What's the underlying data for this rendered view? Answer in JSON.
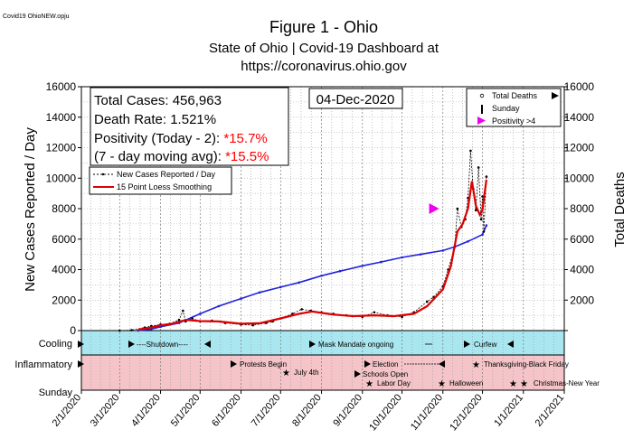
{
  "file_label": "Covid19 OhioNEW.opju",
  "title": "Figure 1 - Ohio",
  "subtitle_line1": "State of Ohio | Covid-19 Dashboard at",
  "subtitle_line2": "https://coronavirus.ohio.gov",
  "stats": {
    "total_cases": "Total Cases: 456,963",
    "death_rate": "Death Rate:  1.521%",
    "positivity_today_label": "Positivity (Today - 2): ",
    "positivity_today_value": "*15.7%",
    "positivity_avg_label": "(7 - day moving avg): ",
    "positivity_avg_value": "*15.5%"
  },
  "date_box": "04-Dec-2020",
  "legend_left": {
    "new_cases": "New Cases Reported / Day",
    "smoothing": "15 Point Loess Smoothing"
  },
  "legend_right": {
    "total_deaths": "Total Deaths",
    "sunday": "Sunday",
    "positivity": "Positivity >4"
  },
  "row_labels": {
    "cooling": "Cooling",
    "inflammatory": "Inflammatory",
    "sunday": "Sunday"
  },
  "events": {
    "shutdown": "----Shutdown----",
    "mask_mandate": "Mask Mandate ongoing",
    "curfew": "Curfew",
    "protests": "Protests Begin",
    "election": "Election",
    "thanksgiving": "Thanksgiving-Black Friday",
    "july4": "July 4th",
    "schools_open": "Schools Open",
    "labor_day": "Labor Day",
    "halloween": "Halloween",
    "christmas": "Christmas-New Year"
  },
  "colors": {
    "new_cases": "#000000",
    "smoothing": "#dd0000",
    "total_deaths": "#2222dd",
    "positivity_marker": "#ee00ee",
    "cooling_band": "#a8e6f0",
    "inflammatory_band": "#f4c4c8",
    "highlight_text": "#ff0000"
  },
  "chart_data": {
    "type": "line",
    "title": "Figure 1 - Ohio",
    "xlabel": "",
    "ylabel": "New Cases Reported / Day",
    "y2label": "Total Deaths",
    "x_ticks": [
      "2/1/2020",
      "3/1/2020",
      "4/1/2020",
      "5/1/2020",
      "6/1/2020",
      "7/1/2020",
      "8/1/2020",
      "9/1/2020",
      "10/1/2020",
      "11/1/2020",
      "12/1/2020",
      "1/1/2021",
      "2/1/2021"
    ],
    "ylim": [
      0,
      16000
    ],
    "y2lim": [
      0,
      16000
    ],
    "y_ticks": [
      0,
      2000,
      4000,
      6000,
      8000,
      10000,
      12000,
      14000,
      16000
    ],
    "grid": true,
    "series": [
      {
        "name": "New Cases Reported / Day",
        "x": [
          "2020-03-01",
          "2020-03-10",
          "2020-03-20",
          "2020-03-25",
          "2020-04-01",
          "2020-04-08",
          "2020-04-15",
          "2020-04-18",
          "2020-04-20",
          "2020-04-25",
          "2020-05-01",
          "2020-05-10",
          "2020-05-20",
          "2020-06-01",
          "2020-06-10",
          "2020-06-20",
          "2020-06-25",
          "2020-07-01",
          "2020-07-10",
          "2020-07-17",
          "2020-07-24",
          "2020-08-01",
          "2020-08-10",
          "2020-08-20",
          "2020-09-01",
          "2020-09-10",
          "2020-09-20",
          "2020-10-01",
          "2020-10-10",
          "2020-10-20",
          "2020-10-25",
          "2020-11-01",
          "2020-11-05",
          "2020-11-10",
          "2020-11-12",
          "2020-11-15",
          "2020-11-18",
          "2020-11-20",
          "2020-11-22",
          "2020-11-24",
          "2020-11-26",
          "2020-11-28",
          "2020-11-30",
          "2020-12-01",
          "2020-12-02",
          "2020-12-04"
        ],
        "values": [
          0,
          30,
          200,
          300,
          400,
          450,
          700,
          1300,
          600,
          800,
          600,
          650,
          500,
          400,
          350,
          500,
          600,
          800,
          1100,
          1400,
          1300,
          1200,
          1100,
          1000,
          900,
          1200,
          1000,
          900,
          1200,
          1900,
          2200,
          2900,
          4000,
          5500,
          8000,
          6800,
          7300,
          8700,
          11800,
          9300,
          7900,
          10700,
          7300,
          8800,
          6500,
          10100
        ]
      },
      {
        "name": "15 Point Loess Smoothing",
        "x": [
          "2020-03-15",
          "2020-03-25",
          "2020-04-01",
          "2020-04-10",
          "2020-04-20",
          "2020-05-01",
          "2020-05-15",
          "2020-06-01",
          "2020-06-15",
          "2020-07-01",
          "2020-07-15",
          "2020-07-25",
          "2020-08-10",
          "2020-08-25",
          "2020-09-10",
          "2020-09-25",
          "2020-10-10",
          "2020-10-20",
          "2020-11-01",
          "2020-11-07",
          "2020-11-12",
          "2020-11-16",
          "2020-11-20",
          "2020-11-23",
          "2020-11-26",
          "2020-11-29",
          "2020-12-01",
          "2020-12-04"
        ],
        "values": [
          60,
          200,
          350,
          450,
          700,
          620,
          600,
          450,
          480,
          800,
          1100,
          1250,
          1050,
          950,
          1000,
          950,
          1100,
          1600,
          2700,
          4200,
          6500,
          7000,
          8000,
          9800,
          8200,
          7600,
          7900,
          9900
        ]
      },
      {
        "name": "Total Deaths",
        "axis": "right",
        "x": [
          "2020-03-15",
          "2020-03-25",
          "2020-04-01",
          "2020-04-15",
          "2020-05-01",
          "2020-05-15",
          "2020-06-01",
          "2020-06-15",
          "2020-07-01",
          "2020-07-15",
          "2020-08-01",
          "2020-08-15",
          "2020-09-01",
          "2020-09-15",
          "2020-10-01",
          "2020-10-15",
          "2020-11-01",
          "2020-11-10",
          "2020-11-20",
          "2020-12-01",
          "2020-12-04"
        ],
        "values": [
          0,
          100,
          250,
          500,
          1100,
          1600,
          2100,
          2500,
          2850,
          3150,
          3600,
          3900,
          4250,
          4500,
          4800,
          5000,
          5250,
          5500,
          5850,
          6300,
          6900
        ]
      }
    ],
    "annotations": [
      {
        "name": "Positivity >4",
        "x": "2020-10-25",
        "y": 8000
      }
    ]
  }
}
